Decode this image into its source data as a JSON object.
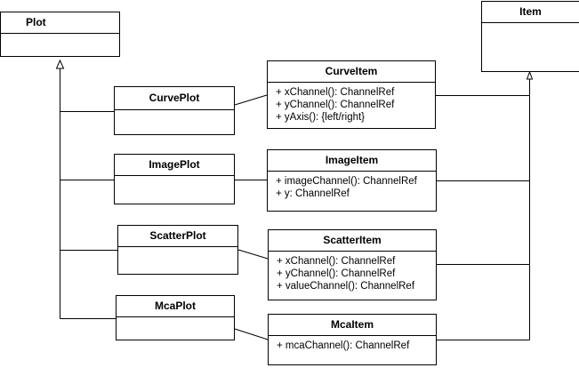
{
  "classes": {
    "plot": {
      "name": "Plot"
    },
    "item": {
      "name": "Item"
    },
    "curve_plot": {
      "name": "CurvePlot"
    },
    "image_plot": {
      "name": "ImagePlot"
    },
    "scatter_plot": {
      "name": "ScatterPlot"
    },
    "mca_plot": {
      "name": "McaPlot"
    },
    "curve_item": {
      "name": "CurveItem",
      "members": [
        "+ xChannel(): ChannelRef",
        "+ yChannel(): ChannelRef",
        "+ yAxis(): {left/right}"
      ]
    },
    "image_item": {
      "name": "ImageItem",
      "members": [
        "+ imageChannel(): ChannelRef",
        "+ y: ChannelRef"
      ]
    },
    "scatter_item": {
      "name": "ScatterItem",
      "members": [
        "+ xChannel(): ChannelRef",
        "+ yChannel(): ChannelRef",
        "+ valueChannel(): ChannelRef"
      ]
    },
    "mca_item": {
      "name": "McaItem",
      "members": [
        "+ mcaChannel(): ChannelRef"
      ]
    }
  },
  "relations": [
    {
      "type": "generalization",
      "from": "curve_plot",
      "to": "plot"
    },
    {
      "type": "generalization",
      "from": "image_plot",
      "to": "plot"
    },
    {
      "type": "generalization",
      "from": "scatter_plot",
      "to": "plot"
    },
    {
      "type": "generalization",
      "from": "mca_plot",
      "to": "plot"
    },
    {
      "type": "generalization",
      "from": "curve_item",
      "to": "item"
    },
    {
      "type": "generalization",
      "from": "image_item",
      "to": "item"
    },
    {
      "type": "generalization",
      "from": "scatter_item",
      "to": "item"
    },
    {
      "type": "generalization",
      "from": "mca_item",
      "to": "item"
    },
    {
      "type": "association",
      "from": "curve_plot",
      "to": "curve_item"
    },
    {
      "type": "association",
      "from": "image_plot",
      "to": "image_item"
    },
    {
      "type": "association",
      "from": "scatter_plot",
      "to": "scatter_item"
    },
    {
      "type": "association",
      "from": "mca_plot",
      "to": "mca_item"
    }
  ]
}
